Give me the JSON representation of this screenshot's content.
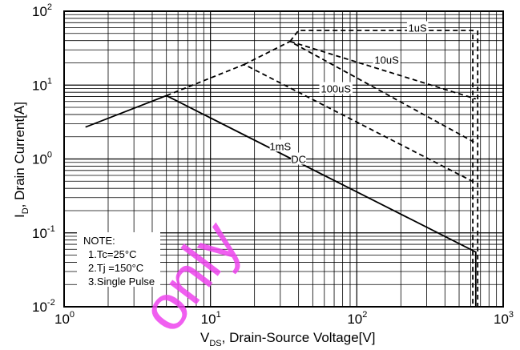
{
  "chart_data": {
    "type": "line",
    "x_scale": "log",
    "y_scale": "log",
    "xlim": [
      1,
      1000
    ],
    "ylim": [
      0.01,
      100
    ],
    "grid": true,
    "xlabel": {
      "main": "V",
      "sub": "DS",
      "rest": ", Drain-Source Voltage[V]"
    },
    "ylabel": {
      "main": "I",
      "sub": "D",
      "rest": ", Drain Current[A]"
    },
    "x_ticks": [
      {
        "base": "10",
        "exp": "0",
        "value": 1
      },
      {
        "base": "10",
        "exp": "1",
        "value": 10
      },
      {
        "base": "10",
        "exp": "2",
        "value": 100
      },
      {
        "base": "10",
        "exp": "3",
        "value": 1000
      }
    ],
    "y_ticks": [
      {
        "base": "10",
        "exp": "-2",
        "value": 0.01
      },
      {
        "base": "10",
        "exp": "-1",
        "value": 0.1
      },
      {
        "base": "10",
        "exp": "0",
        "value": 1
      },
      {
        "base": "10",
        "exp": "1",
        "value": 10
      },
      {
        "base": "10",
        "exp": "2",
        "value": 100
      }
    ],
    "series": [
      {
        "name": "DC",
        "dash": false,
        "label_at": [
          40,
          1.0
        ],
        "points": [
          [
            1.4,
            2.7
          ],
          [
            5,
            7.2
          ],
          [
            650,
            0.055
          ],
          [
            650,
            0.01
          ]
        ]
      },
      {
        "name": "1mS",
        "dash": true,
        "label_at": [
          30,
          1.5
        ],
        "points": [
          [
            5,
            7.2
          ],
          [
            17,
            19
          ],
          [
            640,
            0.48
          ]
        ]
      },
      {
        "name": "100uS",
        "dash": true,
        "label_at": [
          72,
          9
        ],
        "points": [
          [
            17,
            19
          ],
          [
            35,
            39
          ],
          [
            630,
            1.7
          ]
        ]
      },
      {
        "name": "10uS",
        "dash": true,
        "label_at": [
          160,
          22
        ],
        "points": [
          [
            35,
            39
          ],
          [
            650,
            6.5
          ]
        ]
      },
      {
        "name": "1uS",
        "dash": true,
        "label_at": [
          260,
          60
        ],
        "points": [
          [
            35,
            39
          ],
          [
            40,
            55
          ],
          [
            620,
            55
          ],
          [
            620,
            0.01
          ]
        ]
      }
    ],
    "extra_lines": [
      {
        "dash": true,
        "points": [
          [
            670,
            55
          ],
          [
            670,
            0.01
          ]
        ]
      }
    ],
    "note": [
      "NOTE:",
      "1.Tc=25°C",
      "2.Tj =150°C",
      "3.Single Pulse"
    ],
    "watermark": "only"
  }
}
